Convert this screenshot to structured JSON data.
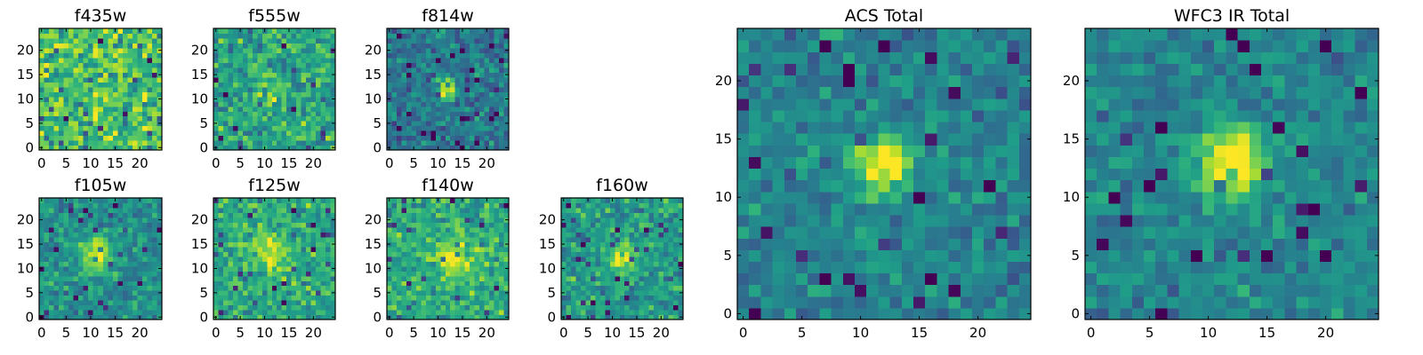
{
  "chart_data": [
    {
      "type": "heatmap",
      "title": "f435w",
      "xlim": [
        0,
        25
      ],
      "ylim": [
        0,
        25
      ],
      "xticks": [
        0,
        5,
        10,
        15,
        20
      ],
      "yticks": [
        0,
        5,
        10,
        15,
        20
      ],
      "colormap": "viridis",
      "image_size": [
        25,
        25
      ],
      "peak": [],
      "mean_level": 0.72,
      "noise": 0.2,
      "seed": 3
    },
    {
      "type": "heatmap",
      "title": "f555w",
      "xlim": [
        0,
        25
      ],
      "ylim": [
        0,
        25
      ],
      "xticks": [
        0,
        5,
        10,
        15,
        20
      ],
      "yticks": [
        0,
        5,
        10,
        15,
        20
      ],
      "colormap": "viridis",
      "image_size": [
        25,
        25
      ],
      "peak": [
        11,
        12,
        2.0,
        0.2
      ],
      "mean_level": 0.58,
      "noise": 0.17,
      "seed": 11
    },
    {
      "type": "heatmap",
      "title": "f814w",
      "xlim": [
        0,
        25
      ],
      "ylim": [
        0,
        25
      ],
      "xticks": [
        0,
        5,
        10,
        15,
        20
      ],
      "yticks": [
        0,
        5,
        10,
        15,
        20
      ],
      "colormap": "viridis",
      "image_size": [
        25,
        25
      ],
      "peak": [
        12,
        12,
        1.5,
        0.6
      ],
      "mean_level": 0.4,
      "noise": 0.14,
      "seed": 23
    },
    {
      "type": "heatmap",
      "title": "f105w",
      "xlim": [
        0,
        25
      ],
      "ylim": [
        0,
        25
      ],
      "xticks": [
        0,
        5,
        10,
        15,
        20
      ],
      "yticks": [
        0,
        5,
        10,
        15,
        20
      ],
      "colormap": "viridis",
      "image_size": [
        25,
        25
      ],
      "peak": [
        11,
        13,
        2.4,
        0.45
      ],
      "mean_level": 0.5,
      "noise": 0.13,
      "seed": 37
    },
    {
      "type": "heatmap",
      "title": "f125w",
      "xlim": [
        0,
        25
      ],
      "ylim": [
        0,
        25
      ],
      "xticks": [
        0,
        5,
        10,
        15,
        20
      ],
      "yticks": [
        0,
        5,
        10,
        15,
        20
      ],
      "colormap": "viridis",
      "image_size": [
        25,
        25
      ],
      "peak": [
        11,
        13,
        2.8,
        0.3
      ],
      "mean_level": 0.6,
      "noise": 0.15,
      "seed": 41
    },
    {
      "type": "heatmap",
      "title": "f140w",
      "xlim": [
        0,
        25
      ],
      "ylim": [
        0,
        25
      ],
      "xticks": [
        0,
        5,
        10,
        15,
        20
      ],
      "yticks": [
        0,
        5,
        10,
        15,
        20
      ],
      "colormap": "viridis",
      "image_size": [
        25,
        25
      ],
      "peak": [
        13,
        12,
        2.8,
        0.3
      ],
      "mean_level": 0.62,
      "noise": 0.15,
      "seed": 53
    },
    {
      "type": "heatmap",
      "title": "f160w",
      "xlim": [
        0,
        25
      ],
      "ylim": [
        0,
        25
      ],
      "xticks": [
        0,
        5,
        10,
        15,
        20
      ],
      "yticks": [
        0,
        5,
        10,
        15,
        20
      ],
      "colormap": "viridis",
      "image_size": [
        25,
        25
      ],
      "peak": [
        12,
        12,
        2.4,
        0.35
      ],
      "mean_level": 0.55,
      "noise": 0.15,
      "seed": 67
    },
    {
      "type": "heatmap",
      "title": "ACS Total",
      "xlim": [
        0,
        25
      ],
      "ylim": [
        0,
        25
      ],
      "xticks": [
        0,
        5,
        10,
        15,
        20
      ],
      "yticks": [
        0,
        5,
        10,
        15,
        20
      ],
      "colormap": "viridis",
      "image_size": [
        25,
        25
      ],
      "peak": [
        12,
        13,
        1.6,
        0.65
      ],
      "mean_level": 0.45,
      "noise": 0.12,
      "seed": 79
    },
    {
      "type": "heatmap",
      "title": "WFC3 IR Total",
      "xlim": [
        0,
        25
      ],
      "ylim": [
        0,
        25
      ],
      "xticks": [
        0,
        5,
        10,
        15,
        20
      ],
      "yticks": [
        0,
        5,
        10,
        15,
        20
      ],
      "colormap": "viridis",
      "image_size": [
        25,
        25
      ],
      "peak": [
        12,
        13,
        2.1,
        0.6
      ],
      "mean_level": 0.45,
      "noise": 0.11,
      "seed": 97
    }
  ]
}
